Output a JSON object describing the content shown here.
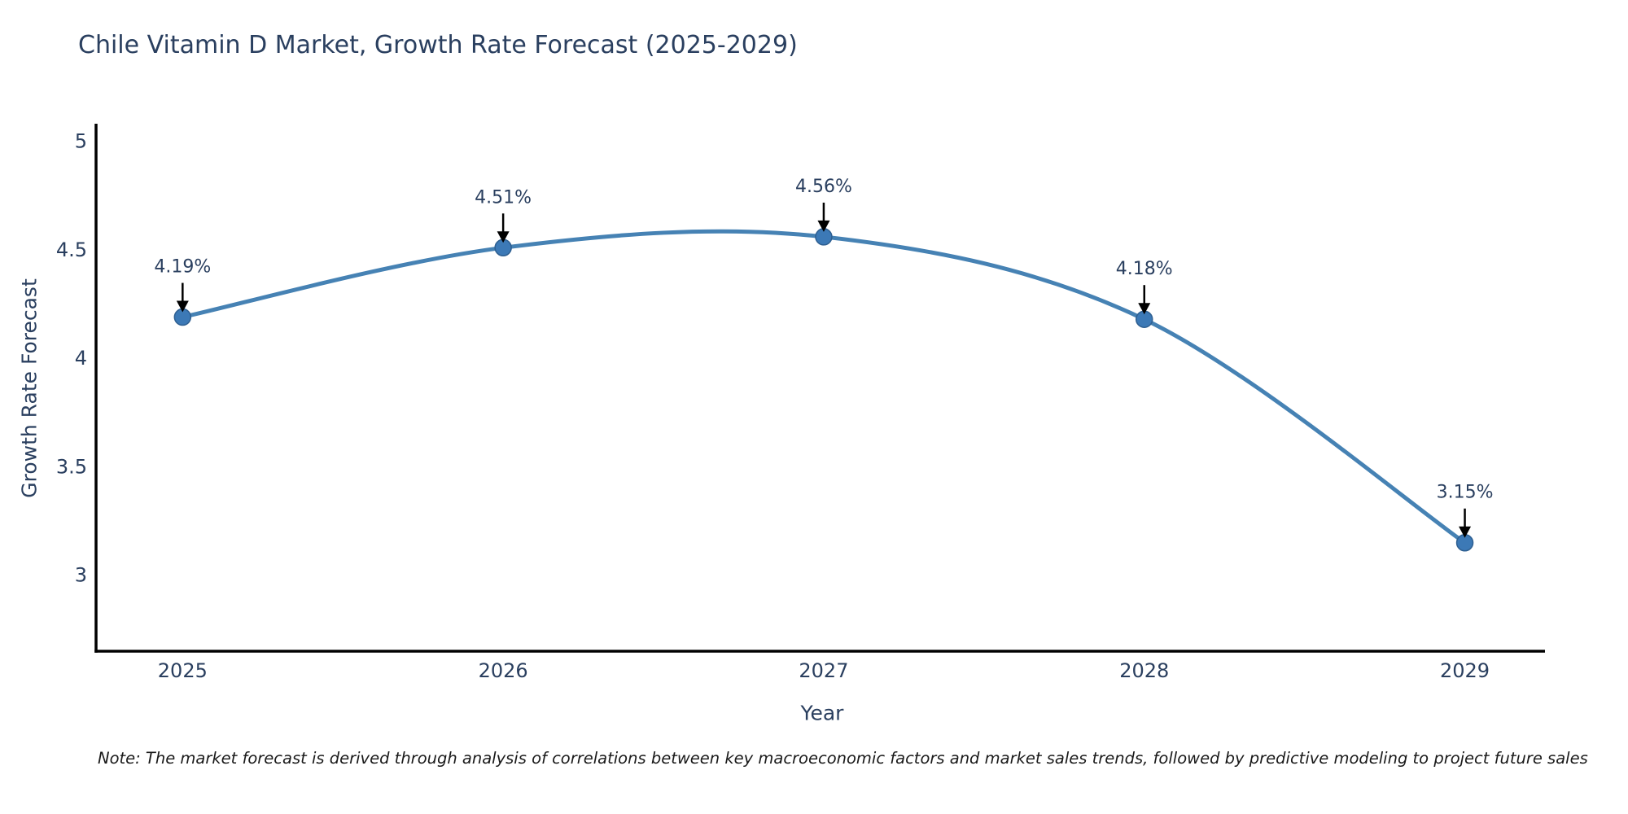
{
  "title": "Chile Vitamin D Market, Growth Rate Forecast (2025-2029)",
  "note": "Note: The market forecast is derived through analysis of correlations between key macroeconomic factors and market sales trends, followed by predictive modeling to project future sales",
  "colors": {
    "font": "#2a3f5f",
    "line": "#4682b4",
    "marker_fill": "#3c79b6",
    "marker_edge": "#2e5f91",
    "arrow": "#000000",
    "axis": "#000000",
    "note_text": "#1a1a1a"
  },
  "chart_data": {
    "type": "line",
    "title": "Chile Vitamin D Market, Growth Rate Forecast (2025-2029)",
    "xlabel": "Year",
    "ylabel": "Growth Rate Forecast",
    "x": [
      2025,
      2026,
      2027,
      2028,
      2029
    ],
    "y": [
      4.19,
      4.51,
      4.56,
      4.18,
      3.15
    ],
    "point_labels": [
      "4.19%",
      "4.51%",
      "4.56%",
      "4.18%",
      "3.15%"
    ],
    "x_ticks": [
      "2025",
      "2026",
      "2027",
      "2028",
      "2029"
    ],
    "y_ticks": [
      "5",
      "4.5",
      "4",
      "3.5",
      "3"
    ],
    "y_tick_values": [
      5,
      4.5,
      4,
      3.5,
      3
    ],
    "x_range": [
      2024.73,
      2029.25
    ],
    "y_range": [
      2.65,
      5.07
    ],
    "line_shape": "spline",
    "grid": false,
    "legend_position": "none"
  }
}
